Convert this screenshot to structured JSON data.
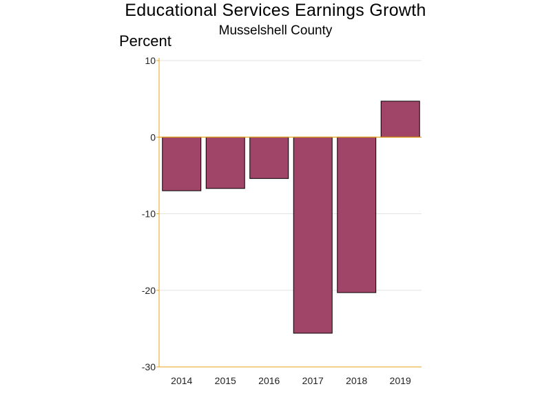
{
  "chart_data": {
    "type": "bar",
    "title": "Educational Services Earnings Growth",
    "subtitle": "Musselshell County",
    "ylabel": "Percent",
    "xlabel": "",
    "categories": [
      "2014",
      "2015",
      "2016",
      "2017",
      "2018",
      "2019"
    ],
    "values": [
      -7.0,
      -6.7,
      -5.4,
      -25.6,
      -20.3,
      4.7
    ],
    "ylim": [
      -30,
      10
    ],
    "yticks": [
      10,
      0,
      -10,
      -20,
      -30
    ],
    "ytick_labels": [
      "10",
      "0",
      "-10",
      "-20",
      "-30"
    ],
    "grid": true,
    "legend": "none",
    "colors": {
      "bar_fill": "#a04468",
      "bar_stroke": "#000000",
      "axis": "#e8a317",
      "grid": "#e4e4e4"
    }
  }
}
